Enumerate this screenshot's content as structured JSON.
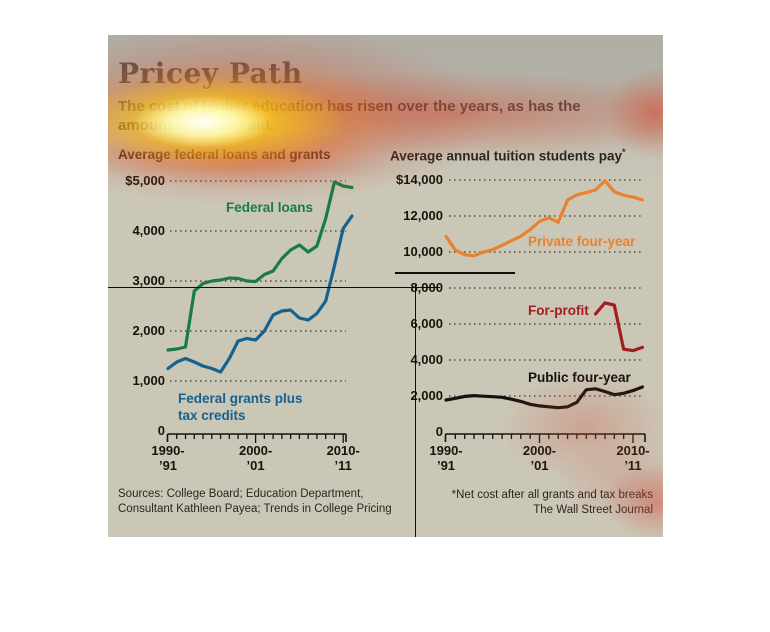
{
  "header": {
    "title": "Pricey Path",
    "subtitle_line1": "The cost of higher education has risen over the years, as has the",
    "subtitle_line2": "amount of federal aid."
  },
  "colors": {
    "panel_background": "#cbc7b7",
    "text": "#191309",
    "federal_loans": "#177c46",
    "federal_grants": "#16618f",
    "private_four_year": "#e8822e",
    "for_profit": "#a01d1f",
    "public_four_year": "#16120e"
  },
  "chart_data": [
    {
      "type": "line",
      "title": "Average federal loans and grants",
      "ylim": [
        0,
        5200
      ],
      "grid": "dotted-horizontal",
      "legend_position": "labels-on-chart",
      "x": [
        1990,
        1991,
        1992,
        1993,
        1994,
        1995,
        1996,
        1997,
        1998,
        1999,
        2000,
        2001,
        2002,
        2003,
        2004,
        2005,
        2006,
        2007,
        2008,
        2009,
        2010,
        2011
      ],
      "x_tick_labels": [
        {
          "line1": "1990-",
          "line2": "’91",
          "year": 1990
        },
        {
          "line1": "2000-",
          "line2": "’01",
          "year": 2000
        },
        {
          "line1": "2010-",
          "line2": "’11",
          "year": 2010
        }
      ],
      "y_ticks": [
        {
          "label": "$5,000",
          "value": 5000
        },
        {
          "label": "4,000",
          "value": 4000
        },
        {
          "label": "3,000",
          "value": 3000
        },
        {
          "label": "2,000",
          "value": 2000
        },
        {
          "label": "1,000",
          "value": 1000
        },
        {
          "label": "0",
          "value": 0
        }
      ],
      "series": [
        {
          "name": "Federal loans",
          "color": "#177c46",
          "values": [
            1620,
            1640,
            1680,
            2800,
            2950,
            3000,
            3020,
            3060,
            3050,
            3000,
            2990,
            3130,
            3200,
            3450,
            3620,
            3720,
            3580,
            3700,
            4250,
            4980,
            4900,
            4870
          ]
        },
        {
          "name": "Federal grants plus tax credits",
          "color": "#16618f",
          "values": [
            1250,
            1380,
            1450,
            1380,
            1300,
            1250,
            1180,
            1450,
            1800,
            1850,
            1820,
            2000,
            2320,
            2400,
            2420,
            2260,
            2220,
            2350,
            2600,
            3300,
            4050,
            4300
          ]
        }
      ]
    },
    {
      "type": "line",
      "title": "Average annual tuition students pay",
      "note_marker": "*",
      "ylim": [
        0,
        14500
      ],
      "grid": "dotted-horizontal",
      "legend_position": "labels-on-chart",
      "x": [
        1990,
        1991,
        1992,
        1993,
        1994,
        1995,
        1996,
        1997,
        1998,
        1999,
        2000,
        2001,
        2002,
        2003,
        2004,
        2005,
        2006,
        2007,
        2008,
        2009,
        2010,
        2011
      ],
      "x_tick_labels": [
        {
          "line1": "1990-",
          "line2": "’91",
          "year": 1990
        },
        {
          "line1": "2000-",
          "line2": "’01",
          "year": 2000
        },
        {
          "line1": "2010-",
          "line2": "’11",
          "year": 2010
        }
      ],
      "y_ticks": [
        {
          "label": "$14,000",
          "value": 14000
        },
        {
          "label": "12,000",
          "value": 12000
        },
        {
          "label": "10,000",
          "value": 10000
        },
        {
          "label": "8,000",
          "value": 8000
        },
        {
          "label": "6,000",
          "value": 6000
        },
        {
          "label": "4,000",
          "value": 4000
        },
        {
          "label": "2,000",
          "value": 2000
        },
        {
          "label": "0",
          "value": 0
        }
      ],
      "series": [
        {
          "name": "Private four-year",
          "color": "#e8822e",
          "values": [
            10870,
            10100,
            9850,
            9790,
            10000,
            10130,
            10370,
            10630,
            10870,
            11240,
            11700,
            11900,
            11650,
            12890,
            13180,
            13300,
            13450,
            13960,
            13350,
            13150,
            13050,
            12900
          ]
        },
        {
          "name": "For-profit",
          "color": "#a01d1f",
          "x": [
            2006,
            2007,
            2008,
            2009,
            2010,
            2011
          ],
          "values": [
            6560,
            7170,
            7050,
            4600,
            4520,
            4700
          ]
        },
        {
          "name": "Public four-year",
          "color": "#16120e",
          "values": [
            1780,
            1870,
            1980,
            2020,
            1990,
            1960,
            1930,
            1820,
            1700,
            1540,
            1450,
            1400,
            1350,
            1400,
            1650,
            2350,
            2400,
            2250,
            2070,
            2150,
            2300,
            2500
          ]
        }
      ]
    }
  ],
  "footer": {
    "sources_line1": "Sources: College Board; Education Department,",
    "sources_line2": "Consultant Kathleen Payea; Trends in College Pricing",
    "note": "*Net cost after all grants and tax breaks",
    "credit": "The Wall Street Journal"
  },
  "annotations": {
    "attention_heatmap": true,
    "crosshair_overlay": true
  }
}
